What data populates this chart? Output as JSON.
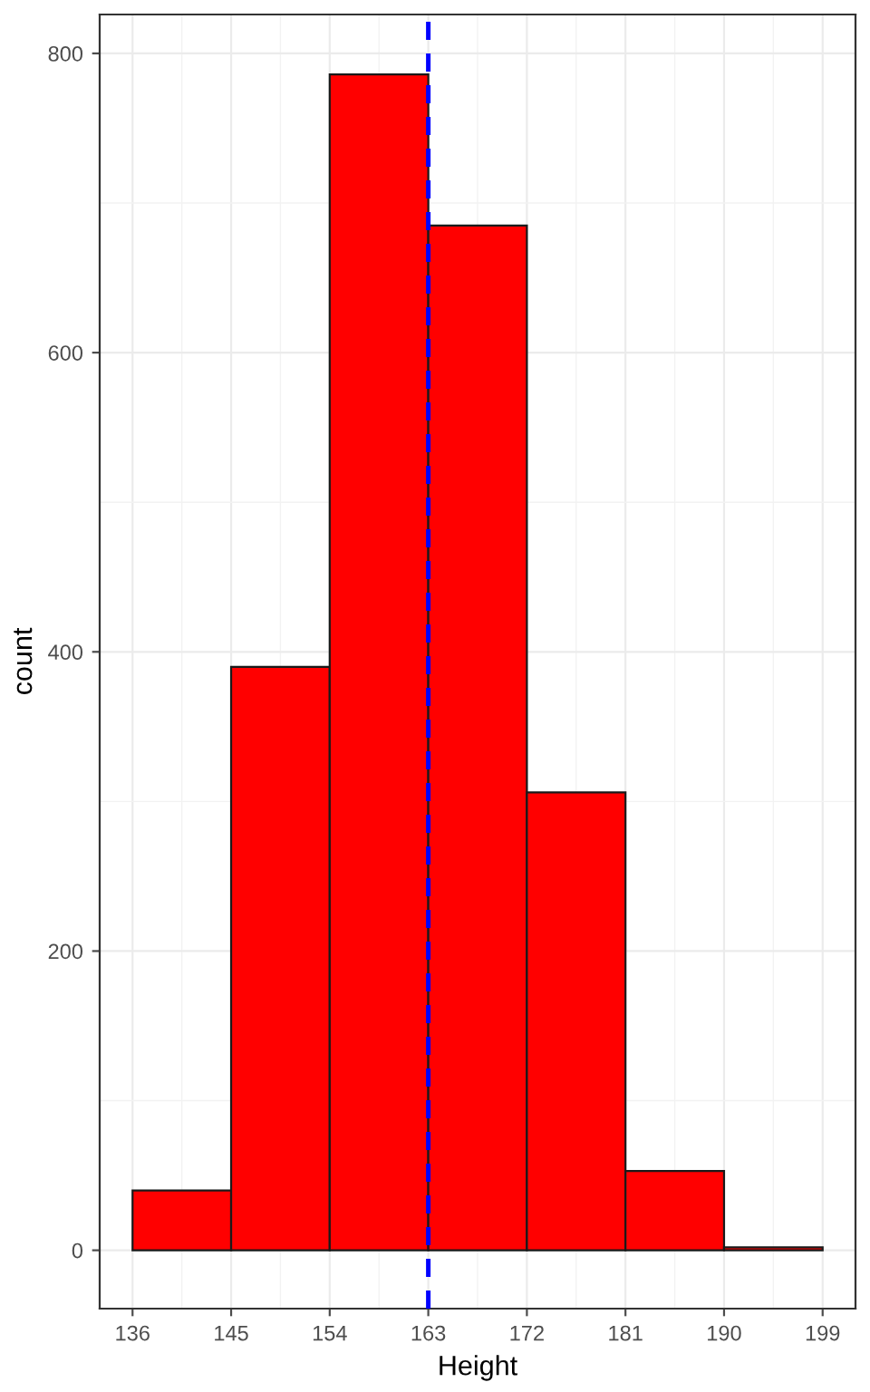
{
  "chart_data": {
    "type": "histogram",
    "xlabel": "Height",
    "ylabel": "count",
    "bins": [
      136,
      145,
      154,
      163,
      172,
      181,
      190,
      199
    ],
    "values": [
      40,
      390,
      786,
      685,
      306,
      53,
      2
    ],
    "color": "#ff0000",
    "xlim": [
      133,
      202
    ],
    "ylim": [
      -39,
      826
    ],
    "xticks": [
      136,
      145,
      154,
      163,
      172,
      181,
      190,
      199
    ],
    "yticks": [
      0,
      200,
      400,
      600,
      800
    ],
    "ref_lines": [
      {
        "axis": "x",
        "value": 163,
        "color": "#0000ff",
        "line_style": "dashed"
      }
    ],
    "grid": true
  }
}
